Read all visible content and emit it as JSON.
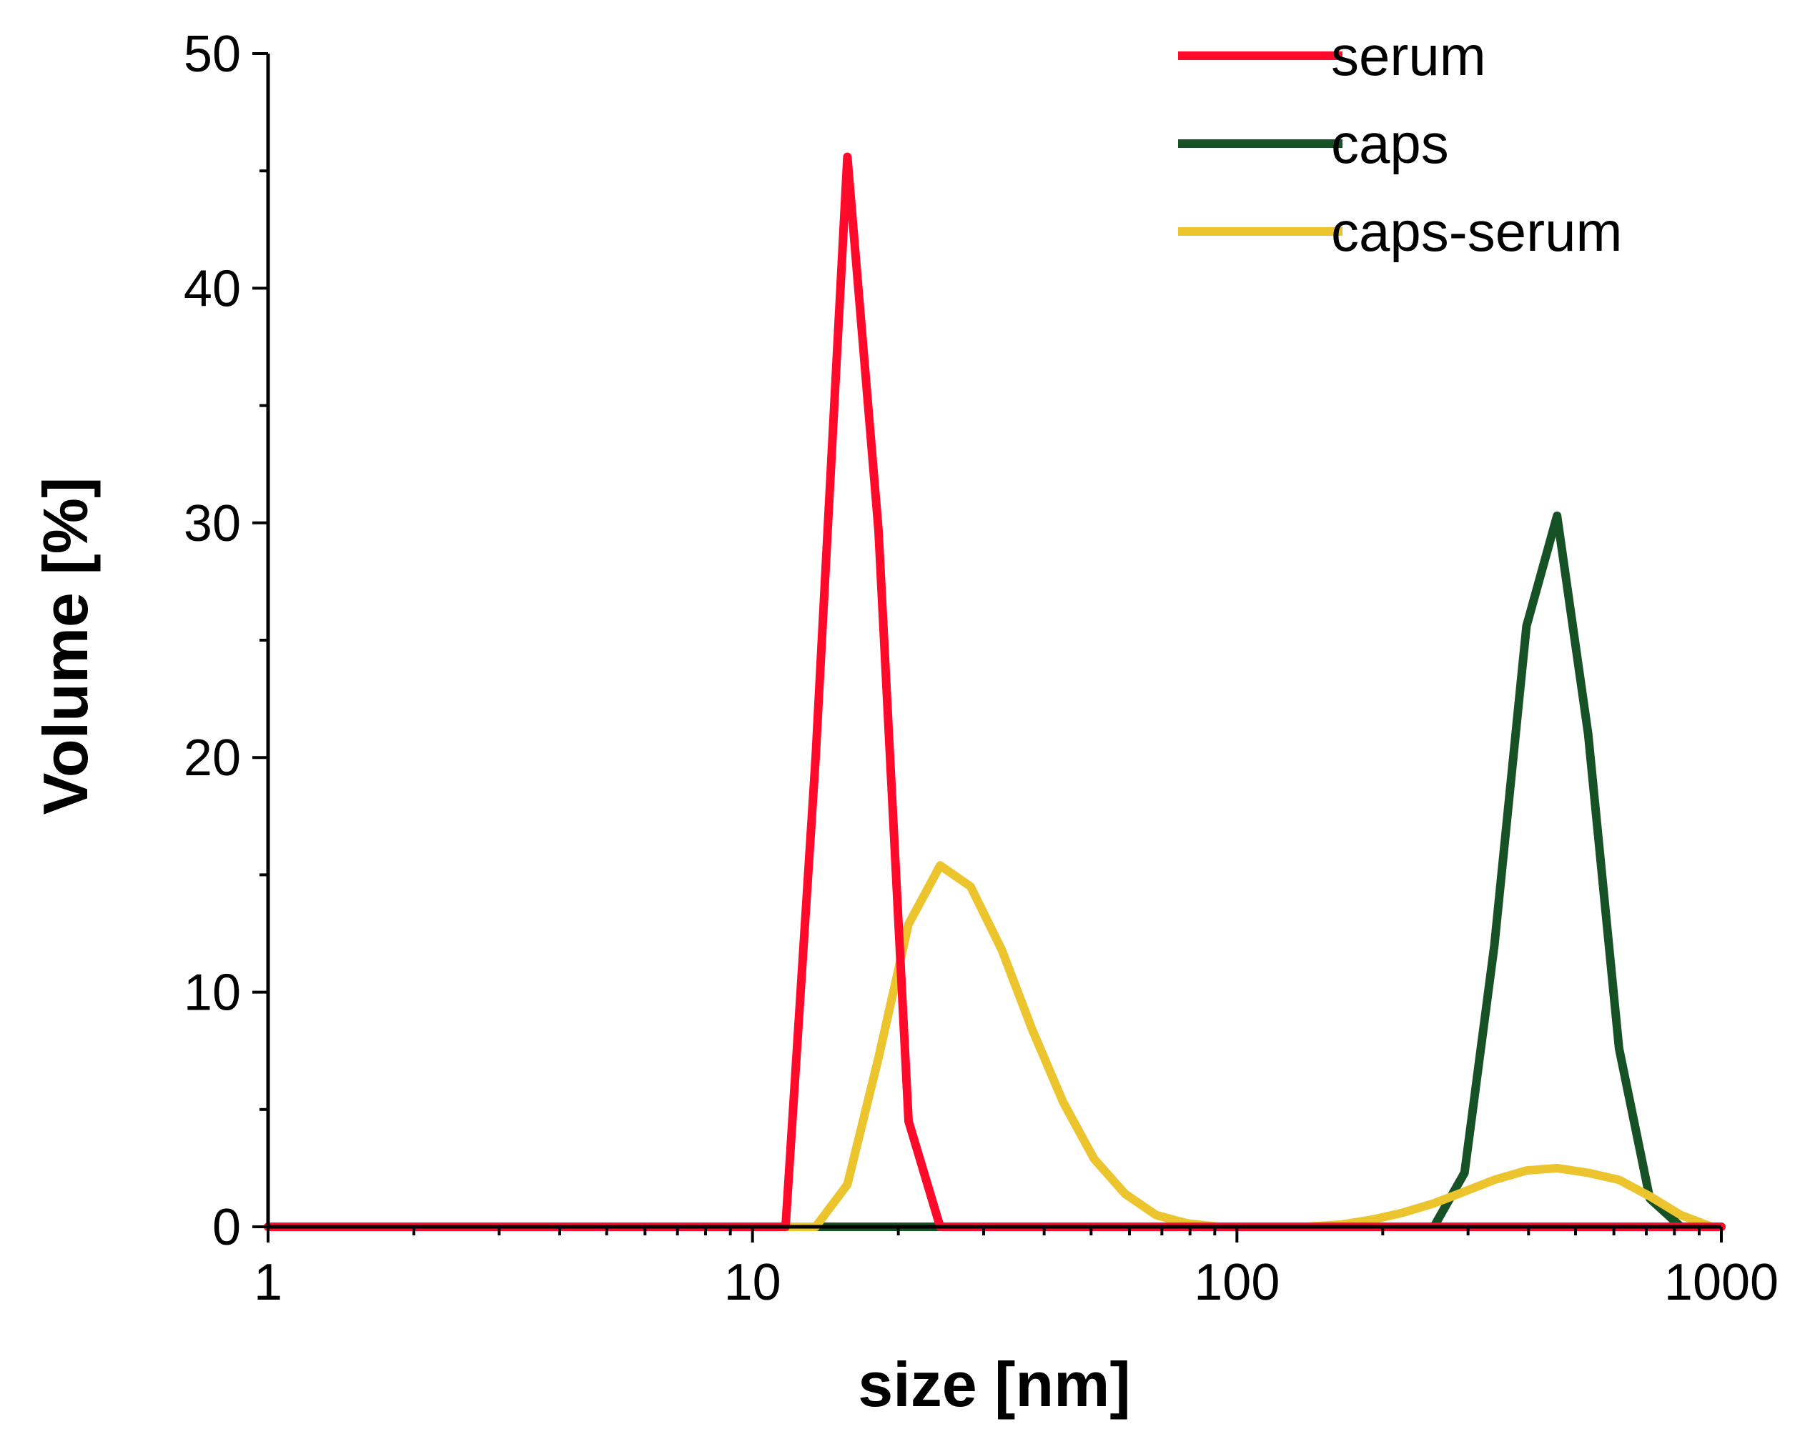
{
  "chart_data": {
    "type": "line",
    "title": "",
    "xlabel": "size [nm]",
    "ylabel": "Volume [%]",
    "xscale": "log",
    "xlim": [
      1,
      1000
    ],
    "ylim": [
      0,
      50
    ],
    "grid": false,
    "legend_position": "top-right",
    "x_ticks": [
      {
        "value": 1,
        "label": "1"
      },
      {
        "value": 10,
        "label": "10"
      },
      {
        "value": 100,
        "label": "100"
      },
      {
        "value": 1000,
        "label": "1000"
      }
    ],
    "y_ticks": [
      {
        "value": 0,
        "label": "0"
      },
      {
        "value": 10,
        "label": "10"
      },
      {
        "value": 20,
        "label": "20"
      },
      {
        "value": 30,
        "label": "30"
      },
      {
        "value": 40,
        "label": "40"
      },
      {
        "value": 50,
        "label": "50"
      }
    ],
    "series": [
      {
        "name": "serum",
        "color": "#ff0a2a",
        "points": [
          [
            1,
            0
          ],
          [
            11.7,
            0
          ],
          [
            13.5,
            20.0
          ],
          [
            15.7,
            45.6
          ],
          [
            18.2,
            29.7
          ],
          [
            21.0,
            4.5
          ],
          [
            24.4,
            0
          ],
          [
            1000,
            0
          ]
        ]
      },
      {
        "name": "caps",
        "color": "#175227",
        "points": [
          [
            1,
            0
          ],
          [
            255,
            0
          ],
          [
            295,
            2.3
          ],
          [
            340,
            12.0
          ],
          [
            396,
            25.6
          ],
          [
            458,
            30.3
          ],
          [
            531,
            21.0
          ],
          [
            615,
            7.6
          ],
          [
            712,
            1.2
          ],
          [
            825,
            0
          ],
          [
            1000,
            0
          ]
        ]
      },
      {
        "name": "caps-serum",
        "color": "#ecc42e",
        "points": [
          [
            1,
            0
          ],
          [
            13.5,
            0
          ],
          [
            15.7,
            1.8
          ],
          [
            18.2,
            7.2
          ],
          [
            21.0,
            12.9
          ],
          [
            24.4,
            15.4
          ],
          [
            28.2,
            14.5
          ],
          [
            32.7,
            11.8
          ],
          [
            37.8,
            8.4
          ],
          [
            43.8,
            5.3
          ],
          [
            50.7,
            2.9
          ],
          [
            58.8,
            1.4
          ],
          [
            68.1,
            0.5
          ],
          [
            78.8,
            0.15
          ],
          [
            91.3,
            0
          ],
          [
            140,
            0
          ],
          [
            165,
            0.1
          ],
          [
            190,
            0.3
          ],
          [
            220,
            0.6
          ],
          [
            255,
            1.0
          ],
          [
            295,
            1.5
          ],
          [
            340,
            2.0
          ],
          [
            396,
            2.4
          ],
          [
            458,
            2.5
          ],
          [
            531,
            2.3
          ],
          [
            615,
            2.0
          ],
          [
            712,
            1.3
          ],
          [
            825,
            0.5
          ],
          [
            955,
            0
          ],
          [
            1000,
            0
          ]
        ]
      }
    ]
  }
}
